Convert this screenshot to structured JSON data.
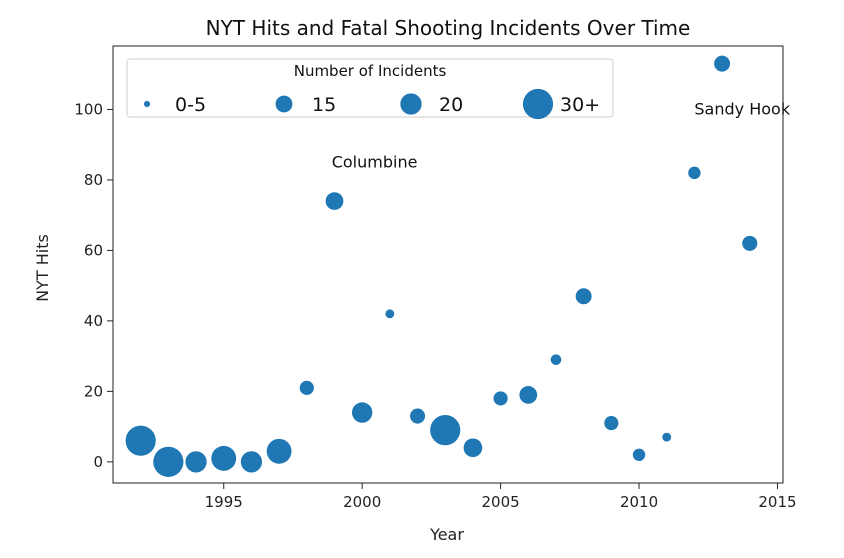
{
  "chart_data": {
    "type": "scatter",
    "title": "NYT Hits and Fatal Shooting Incidents Over Time",
    "xlabel": "Year",
    "ylabel": "NYT Hits",
    "xlim": [
      1991.0,
      2015.2
    ],
    "ylim": [
      -6,
      118
    ],
    "xticks": [
      1995,
      2000,
      2005,
      2010,
      2015
    ],
    "yticks": [
      0,
      20,
      40,
      60,
      80,
      100
    ],
    "color": "#1f77b4",
    "grid": false,
    "legend": {
      "title": "Number of Incidents",
      "placement": "top-left",
      "entries": [
        {
          "label": "0-5",
          "incidents": 3
        },
        {
          "label": "15",
          "incidents": 15
        },
        {
          "label": "20",
          "incidents": 20
        },
        {
          "label": "30+",
          "incidents": 30
        }
      ]
    },
    "points": [
      {
        "x": 1992,
        "y": 6,
        "incidents": 30
      },
      {
        "x": 1993,
        "y": 0,
        "incidents": 30
      },
      {
        "x": 1994,
        "y": 0,
        "incidents": 20
      },
      {
        "x": 1995,
        "y": 1,
        "incidents": 24
      },
      {
        "x": 1996,
        "y": 0,
        "incidents": 20
      },
      {
        "x": 1997,
        "y": 3,
        "incidents": 24
      },
      {
        "x": 1998,
        "y": 21,
        "incidents": 12
      },
      {
        "x": 1999,
        "y": 74,
        "incidents": 16
      },
      {
        "x": 2000,
        "y": 14,
        "incidents": 19
      },
      {
        "x": 2001,
        "y": 42,
        "incidents": 6
      },
      {
        "x": 2002,
        "y": 13,
        "incidents": 13
      },
      {
        "x": 2003,
        "y": 9,
        "incidents": 30
      },
      {
        "x": 2004,
        "y": 4,
        "incidents": 17
      },
      {
        "x": 2005,
        "y": 18,
        "incidents": 12
      },
      {
        "x": 2006,
        "y": 19,
        "incidents": 16
      },
      {
        "x": 2007,
        "y": 29,
        "incidents": 8
      },
      {
        "x": 2008,
        "y": 47,
        "incidents": 14
      },
      {
        "x": 2009,
        "y": 11,
        "incidents": 12
      },
      {
        "x": 2010,
        "y": 2,
        "incidents": 10
      },
      {
        "x": 2011,
        "y": 7,
        "incidents": 6
      },
      {
        "x": 2012,
        "y": 82,
        "incidents": 10
      },
      {
        "x": 2013,
        "y": 113,
        "incidents": 14
      },
      {
        "x": 2014,
        "y": 62,
        "incidents": 13
      }
    ],
    "annotations": [
      {
        "text": "Columbine",
        "x": 1998.9,
        "y": 85
      },
      {
        "text": "Sandy Hook",
        "x": 2012.0,
        "y": 100
      }
    ]
  }
}
